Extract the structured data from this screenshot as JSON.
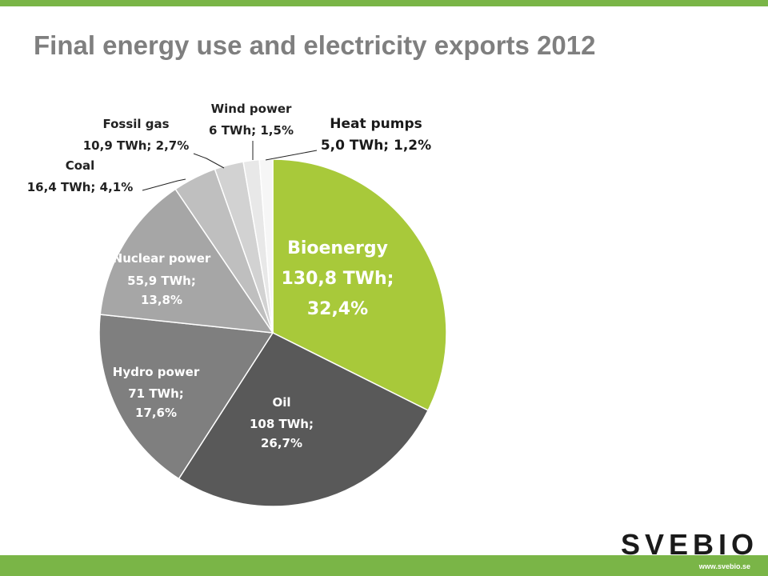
{
  "chart_data": {
    "type": "pie",
    "title": "Final energy use and electricity exports 2012",
    "categories": [
      "Bioenergy",
      "Oil",
      "Hydro power",
      "Nuclear power",
      "Coal",
      "Fossil gas",
      "Wind power",
      "Heat pumps"
    ],
    "values": [
      130.8,
      108,
      71,
      55.9,
      16.4,
      10.9,
      6,
      5.0
    ],
    "value_labels": [
      "130,8 TWh; 32,4%",
      "108 TWh; 26,7%",
      "71 TWh; 17,6%",
      "55,9 TWh; 13,8%",
      "16,4 TWh; 4,1%",
      "10,9 TWh; 2,7%",
      "6 TWh; 1,5%",
      "5,0 TWh; 1,2%"
    ],
    "colors": [
      "#a8c93a",
      "#595959",
      "#7f7f7f",
      "#a6a6a6",
      "#bfbfbf",
      "#d2d2d2",
      "#e8e8e8",
      "#f6f6f6"
    ]
  },
  "footer": {
    "logo": "SVEBIO",
    "url": "www.svebio.se"
  }
}
